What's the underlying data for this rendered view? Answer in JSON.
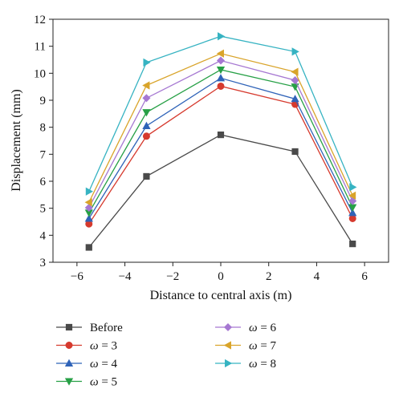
{
  "chart_data": {
    "type": "line",
    "xlabel": "Distance to central axis (m)",
    "ylabel": "Displacement (mm)",
    "xlim": [
      -7,
      7
    ],
    "ylim": [
      3,
      12
    ],
    "xticks": [
      -6,
      -4,
      -2,
      0,
      2,
      4,
      6
    ],
    "yticks": [
      3,
      4,
      5,
      6,
      7,
      8,
      9,
      10,
      11,
      12
    ],
    "x": [
      -5.5,
      -3.1,
      0,
      3.1,
      5.5
    ],
    "grid": false,
    "legend_position": "bottom",
    "series": [
      {
        "name": "Before",
        "color": "#4a4a4a",
        "marker": "square",
        "values": [
          3.55,
          6.18,
          7.72,
          7.1,
          3.68
        ]
      },
      {
        "name": "ω = 3",
        "color": "#d63a2e",
        "marker": "circle",
        "values": [
          4.42,
          7.67,
          9.52,
          8.85,
          4.62
        ]
      },
      {
        "name": "ω = 4",
        "color": "#2f63b8",
        "marker": "triangle-up",
        "values": [
          4.62,
          8.05,
          9.82,
          9.05,
          4.83
        ]
      },
      {
        "name": "ω = 5",
        "color": "#27a046",
        "marker": "triangle-down",
        "values": [
          4.83,
          8.55,
          10.13,
          9.5,
          5.03
        ]
      },
      {
        "name": "ω = 6",
        "color": "#a678d2",
        "marker": "diamond",
        "values": [
          5.02,
          9.08,
          10.47,
          9.74,
          5.27
        ]
      },
      {
        "name": "ω = 7",
        "color": "#d9a42a",
        "marker": "triangle-left",
        "values": [
          5.22,
          9.55,
          10.73,
          10.05,
          5.47
        ]
      },
      {
        "name": "ω = 8",
        "color": "#36b3c2",
        "marker": "triangle-right",
        "values": [
          5.62,
          10.4,
          11.37,
          10.8,
          5.78
        ]
      }
    ]
  }
}
